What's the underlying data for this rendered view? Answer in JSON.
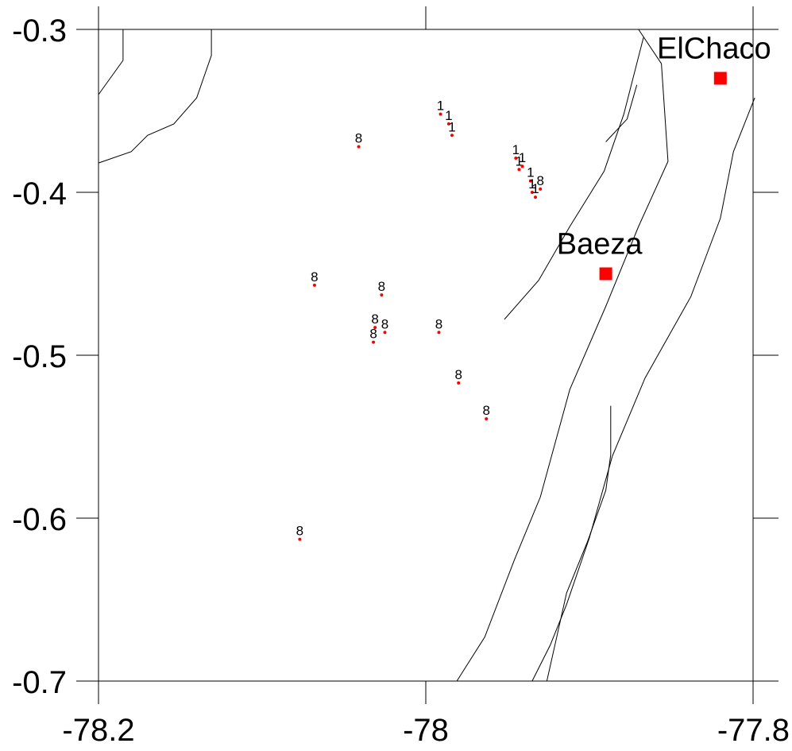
{
  "chart_data": {
    "type": "scatter",
    "title": "",
    "xlabel": "",
    "ylabel": "",
    "xlim": [
      -78.2,
      -77.8
    ],
    "ylim": [
      -0.7,
      -0.3
    ],
    "x_ticks": [
      {
        "value": -78.2,
        "label": "-78.2"
      },
      {
        "value": -78.0,
        "label": "-78"
      },
      {
        "value": -77.8,
        "label": "-77.8"
      }
    ],
    "y_ticks": [
      {
        "value": -0.3,
        "label": "-0.3"
      },
      {
        "value": -0.4,
        "label": "-0.4"
      },
      {
        "value": -0.5,
        "label": "-0.5"
      },
      {
        "value": -0.6,
        "label": "-0.6"
      },
      {
        "value": -0.7,
        "label": "-0.7"
      }
    ],
    "colors": {
      "point": "#ff0000",
      "city": "#ff0000",
      "line": "#000000"
    },
    "cities": [
      {
        "name": "El Chaco",
        "label": "ElChaco",
        "lon": -77.82,
        "lat": -0.33
      },
      {
        "name": "Baeza",
        "label": "Baeza",
        "lon": -77.89,
        "lat": -0.45
      }
    ],
    "points": [
      {
        "lon": -77.991,
        "lat": -0.352,
        "label": "1"
      },
      {
        "lon": -77.986,
        "lat": -0.358,
        "label": "1"
      },
      {
        "lon": -77.984,
        "lat": -0.365,
        "label": "1"
      },
      {
        "lon": -78.041,
        "lat": -0.372,
        "label": "8"
      },
      {
        "lon": -77.945,
        "lat": -0.379,
        "label": "1"
      },
      {
        "lon": -77.943,
        "lat": -0.386,
        "label": "1"
      },
      {
        "lon": -77.941,
        "lat": -0.384,
        "label": "1"
      },
      {
        "lon": -77.936,
        "lat": -0.393,
        "label": "1"
      },
      {
        "lon": -77.935,
        "lat": -0.4,
        "label": "1"
      },
      {
        "lon": -77.933,
        "lat": -0.403,
        "label": "1"
      },
      {
        "lon": -77.93,
        "lat": -0.398,
        "label": "8"
      },
      {
        "lon": -78.068,
        "lat": -0.457,
        "label": "8"
      },
      {
        "lon": -78.027,
        "lat": -0.463,
        "label": "8"
      },
      {
        "lon": -78.031,
        "lat": -0.483,
        "label": "8"
      },
      {
        "lon": -78.025,
        "lat": -0.486,
        "label": "8"
      },
      {
        "lon": -78.032,
        "lat": -0.492,
        "label": "8"
      },
      {
        "lon": -77.992,
        "lat": -0.486,
        "label": "8"
      },
      {
        "lon": -77.98,
        "lat": -0.517,
        "label": "8"
      },
      {
        "lon": -77.963,
        "lat": -0.539,
        "label": "8"
      },
      {
        "lon": -78.077,
        "lat": -0.613,
        "label": "8"
      }
    ],
    "lines": [
      [
        [
          -78.2,
          -0.34
        ],
        [
          -78.185,
          -0.319
        ],
        [
          -78.185,
          -0.3
        ]
      ],
      [
        [
          -78.2,
          -0.382
        ],
        [
          -78.18,
          -0.375
        ],
        [
          -78.17,
          -0.365
        ],
        [
          -78.154,
          -0.358
        ],
        [
          -78.14,
          -0.342
        ],
        [
          -78.131,
          -0.316
        ],
        [
          -78.131,
          -0.3
        ]
      ],
      [
        [
          -77.87,
          -0.3
        ],
        [
          -77.856,
          -0.321
        ],
        [
          -77.852,
          -0.381
        ],
        [
          -77.87,
          -0.421
        ],
        [
          -77.89,
          -0.47
        ],
        [
          -77.912,
          -0.521
        ],
        [
          -77.93,
          -0.587
        ],
        [
          -77.946,
          -0.626
        ],
        [
          -77.964,
          -0.673
        ],
        [
          -77.981,
          -0.7
        ]
      ],
      [
        [
          -77.799,
          -0.342
        ],
        [
          -77.812,
          -0.375
        ],
        [
          -77.82,
          -0.416
        ],
        [
          -77.838,
          -0.464
        ],
        [
          -77.866,
          -0.514
        ],
        [
          -77.886,
          -0.562
        ],
        [
          -77.9,
          -0.612
        ],
        [
          -77.914,
          -0.653
        ],
        [
          -77.924,
          -0.678
        ],
        [
          -77.935,
          -0.7
        ]
      ],
      [
        [
          -77.952,
          -0.478
        ],
        [
          -77.931,
          -0.454
        ],
        [
          -77.912,
          -0.421
        ],
        [
          -77.891,
          -0.387
        ],
        [
          -77.879,
          -0.352
        ],
        [
          -77.867,
          -0.305
        ]
      ],
      [
        [
          -77.887,
          -0.531
        ],
        [
          -77.887,
          -0.561
        ],
        [
          -77.89,
          -0.583
        ],
        [
          -77.901,
          -0.614
        ],
        [
          -77.914,
          -0.646
        ],
        [
          -77.92,
          -0.673
        ],
        [
          -77.926,
          -0.7
        ]
      ],
      [
        [
          -77.871,
          -0.334
        ],
        [
          -77.877,
          -0.355
        ],
        [
          -77.89,
          -0.369
        ]
      ]
    ]
  }
}
